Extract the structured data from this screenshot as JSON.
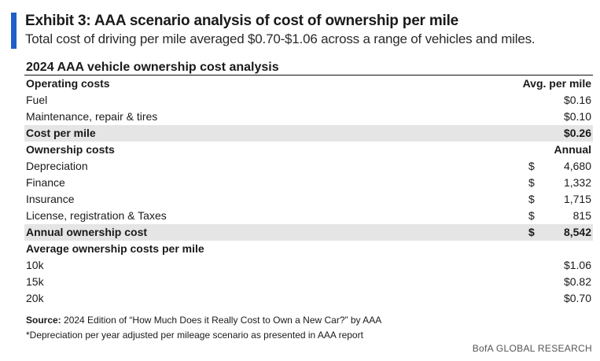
{
  "exhibit": {
    "title": "Exhibit 3: AAA scenario analysis of cost of ownership per mile",
    "subtitle": "Total cost of driving per mile averaged $0.70-$1.06 across a range of vehicles and miles."
  },
  "table": {
    "title": "2024 AAA vehicle ownership cost analysis",
    "rows": [
      {
        "label": "Operating costs",
        "currency": "",
        "value": "Avg. per mile"
      },
      {
        "label": "Fuel",
        "currency": "",
        "value": "$0.16"
      },
      {
        "label": "Maintenance, repair & tires",
        "currency": "",
        "value": "$0.10"
      },
      {
        "label": "Cost per mile",
        "currency": "",
        "value": "$0.26"
      },
      {
        "label": "Ownership costs",
        "currency": "",
        "value": "Annual"
      },
      {
        "label": "Depreciation",
        "currency": "$",
        "value": "4,680"
      },
      {
        "label": "Finance",
        "currency": "$",
        "value": "1,332"
      },
      {
        "label": "Insurance",
        "currency": "$",
        "value": "1,715"
      },
      {
        "label": "License, registration & Taxes",
        "currency": "$",
        "value": "815"
      },
      {
        "label": "Annual ownership cost",
        "currency": "$",
        "value": "8,542"
      },
      {
        "label": "Average ownership costs per mile",
        "currency": "",
        "value": ""
      },
      {
        "label": "10k",
        "currency": "",
        "value": "$1.06"
      },
      {
        "label": "15k",
        "currency": "",
        "value": "$0.82"
      },
      {
        "label": "20k",
        "currency": "",
        "value": "$0.70"
      }
    ]
  },
  "footer": {
    "source_label": "Source:",
    "source_text": " 2024 Edition of “How Much Does it Really Cost to Own a New Car?” by AAA",
    "note": "*Depreciation per year adjusted per mileage scenario as presented in AAA report",
    "brand": "BofA GLOBAL RESEARCH"
  },
  "colors": {
    "accent": "#1f5fc9",
    "shade": "#e5e5e5"
  }
}
